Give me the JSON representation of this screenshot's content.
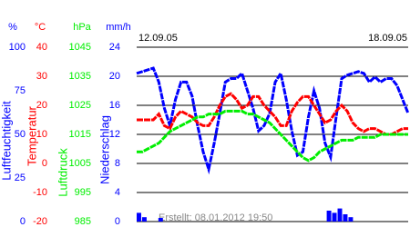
{
  "chart_data": {
    "type": "line",
    "dates": [
      "12.09.05",
      "18.09.05"
    ],
    "created": "Erstellt: 08.01.2012 19:50",
    "axes": [
      {
        "title": "Luftfeuchtigkeit",
        "unit": "%",
        "color": "#0000ff",
        "type": "line",
        "ylim": [
          0,
          100
        ],
        "yticks": [
          0,
          25,
          50,
          75,
          100
        ],
        "values": [
          85,
          86,
          87,
          88,
          80,
          65,
          55,
          70,
          80,
          80,
          72,
          55,
          40,
          30,
          45,
          62,
          80,
          82,
          82,
          85,
          75,
          65,
          52,
          55,
          62,
          80,
          85,
          70,
          52,
          38,
          40,
          60,
          75,
          65,
          45,
          37,
          60,
          82,
          84,
          85,
          86,
          85,
          80,
          83,
          80,
          82,
          82,
          78,
          70,
          62
        ]
      },
      {
        "title": "Temperatur",
        "unit": "°C",
        "color": "#ff0000",
        "type": "line",
        "ylim": [
          -20,
          40
        ],
        "yticks": [
          -20,
          -10,
          0,
          10,
          20,
          30,
          40
        ],
        "grid": true,
        "values": [
          15,
          15,
          15,
          15,
          17,
          13,
          12,
          16,
          18,
          17,
          16,
          14,
          13,
          13,
          16,
          20,
          23,
          24,
          22,
          19,
          20,
          23,
          23,
          20,
          18,
          16,
          13,
          13,
          18,
          21,
          23,
          23,
          20,
          17,
          14,
          15,
          18,
          20,
          18,
          14,
          12,
          11,
          12,
          12,
          11,
          10,
          10,
          11,
          12,
          12
        ]
      },
      {
        "title": "Luftdruck",
        "unit": "hPa",
        "color": "#00ee00",
        "type": "line",
        "ylim": [
          985,
          1045
        ],
        "yticks": [
          985,
          995,
          1005,
          1015,
          1025,
          1035,
          1045
        ],
        "values": [
          1009,
          1009,
          1010,
          1011,
          1012,
          1014,
          1016,
          1017,
          1018,
          1019,
          1020,
          1021,
          1021,
          1022,
          1022,
          1022,
          1023,
          1023,
          1023,
          1023,
          1022,
          1022,
          1021,
          1020,
          1019,
          1017,
          1015,
          1013,
          1011,
          1009,
          1007,
          1006,
          1007,
          1009,
          1010,
          1011,
          1012,
          1013,
          1013,
          1013,
          1014,
          1014,
          1014,
          1014,
          1015,
          1015,
          1015,
          1015,
          1015,
          1015
        ]
      },
      {
        "title": "Niederschlag",
        "unit": "mm/h",
        "color": "#0000ff",
        "type": "bar",
        "ylim": [
          0,
          24
        ],
        "yticks": [
          0,
          4,
          8,
          12,
          16,
          20,
          24
        ],
        "values": [
          1.2,
          0.6,
          0,
          0,
          0.5,
          0,
          0,
          0,
          0,
          0,
          0,
          0,
          0,
          0,
          0,
          0,
          0,
          0,
          0,
          0,
          0,
          0,
          0,
          0,
          0,
          0,
          0,
          0,
          0,
          0,
          0,
          0,
          0,
          0,
          0,
          1.5,
          1.2,
          1.8,
          1.0,
          0.6,
          0,
          0,
          0,
          0,
          0,
          0,
          0,
          0,
          0,
          0
        ]
      }
    ]
  }
}
